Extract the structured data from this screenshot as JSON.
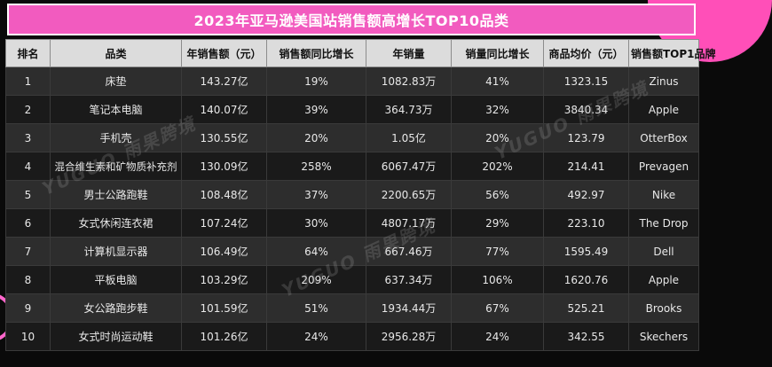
{
  "title": "2023年亚马逊美国站销售额高增长TOP10品类",
  "watermark": "YUGUO 雨果跨境",
  "headers": [
    "排名",
    "品类",
    "年销售额（元）",
    "销售额同比增长",
    "年销量",
    "销量同比增长",
    "商品均价（元）",
    "销售额TOP1品牌"
  ],
  "rows": [
    [
      "1",
      "床垫",
      "143.27亿",
      "19%",
      "1082.83万",
      "41%",
      "1323.15",
      "Zinus"
    ],
    [
      "2",
      "笔记本电脑",
      "140.07亿",
      "39%",
      "364.73万",
      "32%",
      "3840.34",
      "Apple"
    ],
    [
      "3",
      "手机壳",
      "130.55亿",
      "20%",
      "1.05亿",
      "20%",
      "123.79",
      "OtterBox"
    ],
    [
      "4",
      "混合维生素和矿物质补充剂",
      "130.09亿",
      "258%",
      "6067.47万",
      "202%",
      "214.41",
      "Prevagen"
    ],
    [
      "5",
      "男士公路跑鞋",
      "108.48亿",
      "37%",
      "2200.65万",
      "56%",
      "492.97",
      "Nike"
    ],
    [
      "6",
      "女式休闲连衣裙",
      "107.24亿",
      "30%",
      "4807.17万",
      "29%",
      "223.10",
      "The Drop"
    ],
    [
      "7",
      "计算机显示器",
      "106.49亿",
      "64%",
      "667.46万",
      "77%",
      "1595.49",
      "Dell"
    ],
    [
      "8",
      "平板电脑",
      "103.29亿",
      "209%",
      "637.34万",
      "106%",
      "1620.76",
      "Apple"
    ],
    [
      "9",
      "女公路跑步鞋",
      "101.59亿",
      "51%",
      "1934.44万",
      "67%",
      "525.21",
      "Brooks"
    ],
    [
      "10",
      "女式时尚运动鞋",
      "101.26亿",
      "24%",
      "2956.28万",
      "24%",
      "342.55",
      "Skechers"
    ]
  ],
  "colors": {
    "accent_pink": "#f25bbf",
    "header_bg": "#dcdcdc",
    "row_dark": "#1a1a1a",
    "row_light": "#2d2d2d"
  }
}
